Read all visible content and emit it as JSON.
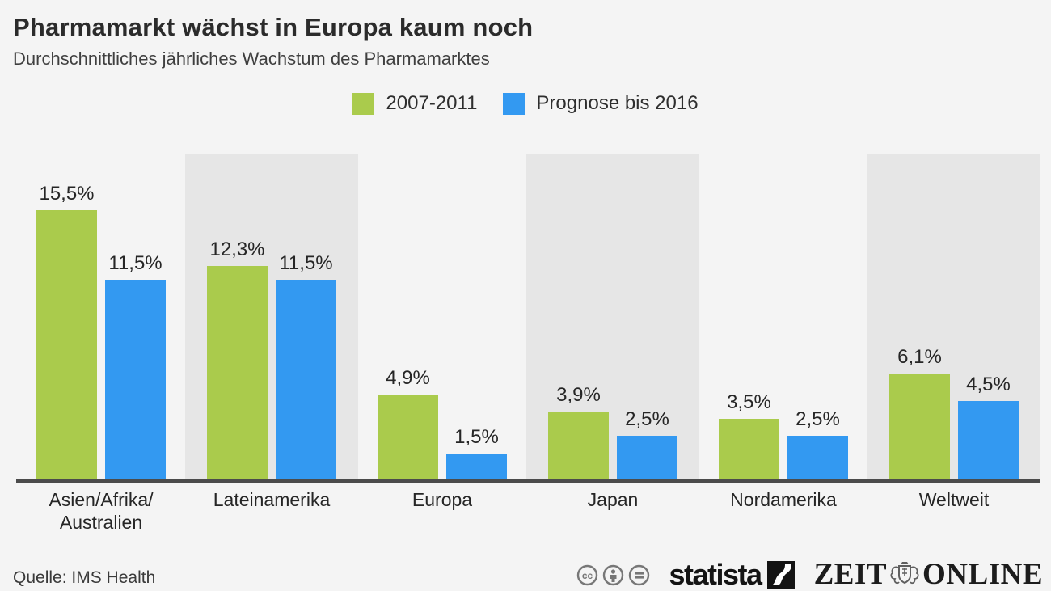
{
  "header": {
    "title": "Pharmamarkt wächst in Europa kaum noch",
    "subtitle": "Durchschnittliches jährliches Wachstum des Pharmamarktes"
  },
  "legend": [
    {
      "label": "2007-2011",
      "color": "#aacb4c"
    },
    {
      "label": "Prognose bis 2016",
      "color": "#3399f1"
    }
  ],
  "chart_data": {
    "type": "bar",
    "title": "Pharmamarkt wächst in Europa kaum noch",
    "subtitle": "Durchschnittliches jährliches Wachstum des Pharmamarktes",
    "categories": [
      "Asien/Afrika/\nAustralien",
      "Lateinamerika",
      "Europa",
      "Japan",
      "Nordamerika",
      "Weltweit"
    ],
    "series": [
      {
        "name": "2007-2011",
        "color": "#aacb4c",
        "values": [
          15.5,
          12.3,
          4.9,
          3.9,
          3.5,
          6.1
        ],
        "labels": [
          "15,5%",
          "12,3%",
          "4,9%",
          "3,9%",
          "3,5%",
          "6,1%"
        ]
      },
      {
        "name": "Prognose bis 2016",
        "color": "#3399f1",
        "values": [
          11.5,
          11.5,
          1.5,
          2.5,
          2.5,
          4.5
        ],
        "labels": [
          "11,5%",
          "11,5%",
          "1,5%",
          "2,5%",
          "2,5%",
          "4,5%"
        ]
      }
    ],
    "unit": "%",
    "xlabel": "",
    "ylabel": "",
    "ylim": [
      0,
      16
    ],
    "grid": false,
    "legend_position": "top",
    "alternating_band_color": "#e6e6e6",
    "baseline_color": "#4b4b4b"
  },
  "footer": {
    "source": "Quelle: IMS Health",
    "license_icons": [
      "cc-icon",
      "cc-by-icon",
      "cc-nd-icon"
    ],
    "logos": {
      "statista": "statista",
      "zeit": "ZEIT",
      "online": "ONLINE"
    }
  }
}
